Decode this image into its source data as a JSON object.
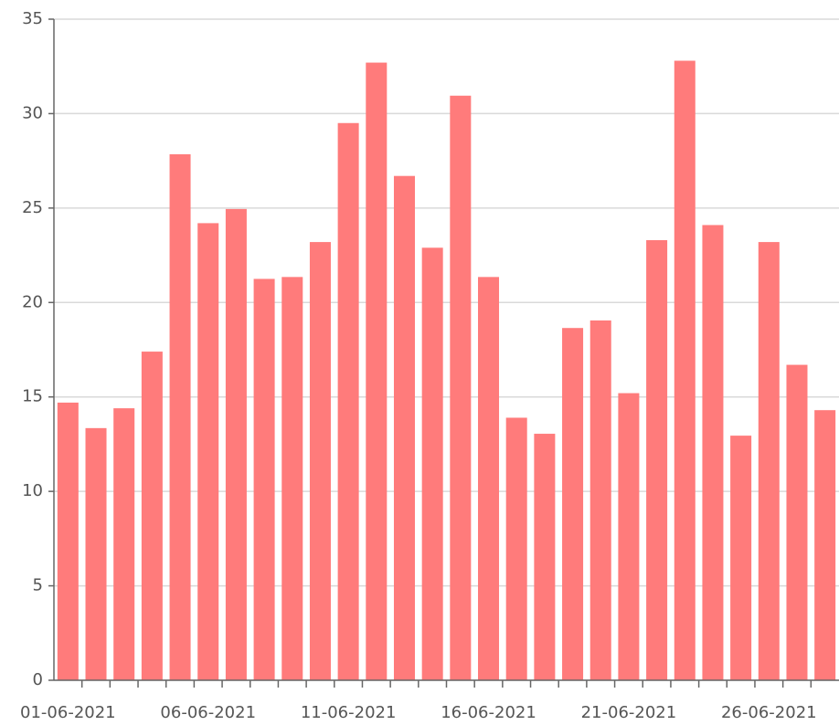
{
  "chart_data": {
    "type": "bar",
    "categories": [
      "01-06-2021",
      null,
      null,
      null,
      null,
      "06-06-2021",
      null,
      null,
      null,
      null,
      "11-06-2021",
      null,
      null,
      null,
      null,
      "16-06-2021",
      null,
      null,
      null,
      null,
      "21-06-2021",
      null,
      null,
      null,
      null,
      "26-06-2021",
      null,
      null
    ],
    "values": [
      14.7,
      13.35,
      14.4,
      17.4,
      27.85,
      24.2,
      24.95,
      21.25,
      21.35,
      23.2,
      29.5,
      32.7,
      26.7,
      22.9,
      30.95,
      21.35,
      13.9,
      13.05,
      18.65,
      19.05,
      15.2,
      23.3,
      32.8,
      24.1,
      12.95,
      23.2,
      16.7,
      14.3
    ],
    "color": "#ff7b7b",
    "ylim": [
      0,
      35
    ],
    "yticks": [
      0,
      5,
      10,
      15,
      20,
      25,
      30,
      35
    ],
    "grid": true
  }
}
